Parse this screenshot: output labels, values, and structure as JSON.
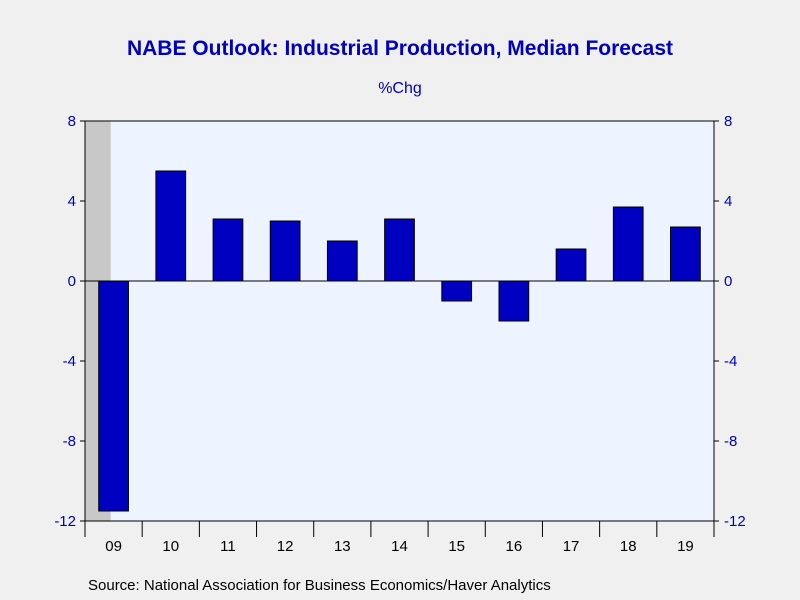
{
  "chart_data": {
    "type": "bar",
    "title": "NABE Outlook: Industrial Production, Median Forecast",
    "subtitle": "%Chg",
    "categories": [
      "09",
      "10",
      "11",
      "12",
      "13",
      "14",
      "15",
      "16",
      "17",
      "18",
      "19"
    ],
    "values": [
      -11.5,
      5.5,
      3.1,
      3.0,
      2.0,
      3.1,
      -1.0,
      -2.0,
      1.6,
      3.7,
      2.7
    ],
    "ylim": [
      -12,
      8
    ],
    "yticks": [
      8,
      4,
      0,
      -4,
      -8,
      -12
    ],
    "ytick_labels": [
      "8",
      "4",
      "0",
      "-4",
      "-8",
      "-12"
    ],
    "shaded_category": "09",
    "grid": false,
    "secondary_y_axis": true,
    "colors": {
      "bar": "#0000c0",
      "plot_background": "#eef4ff",
      "shade": "#c8c8c8",
      "axis_text": "#0000c0",
      "title": "#0000c0"
    },
    "source": "Source:  National Association for Business Economics/Haver Analytics"
  }
}
